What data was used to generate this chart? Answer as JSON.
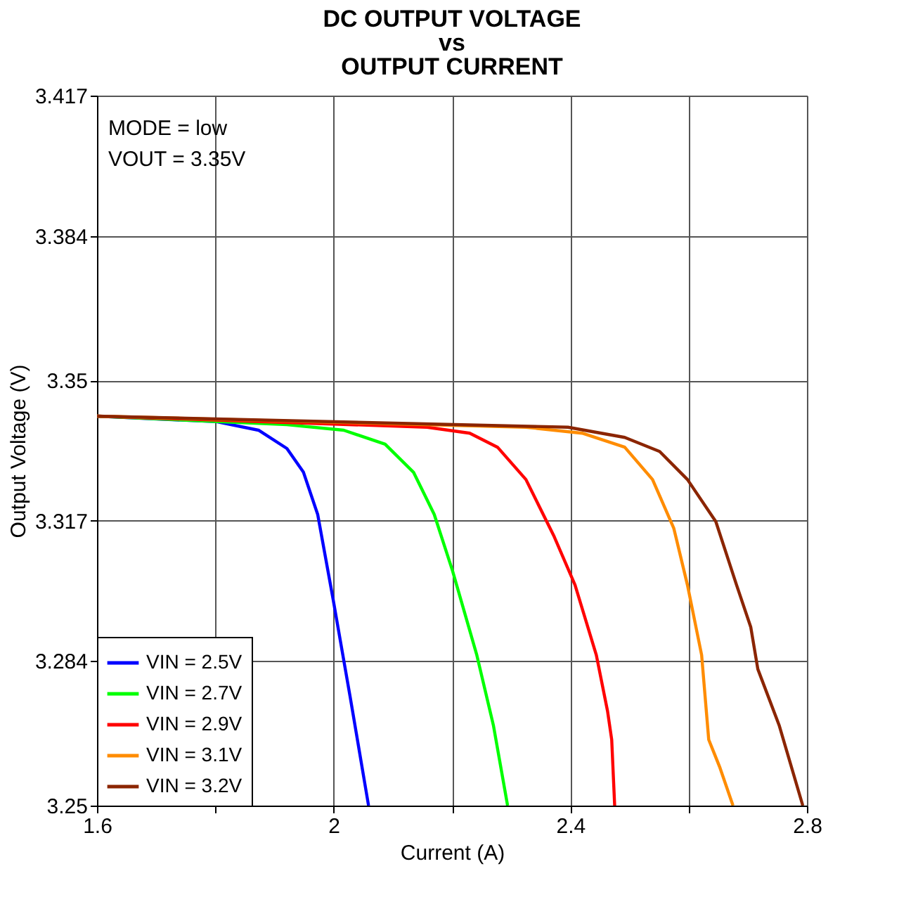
{
  "chart_data": {
    "type": "line",
    "title": "DC OUTPUT VOLTAGE\nvs\nOUTPUT CURRENT",
    "xlabel": "Current (A)",
    "ylabel": "Output Voltage (V)",
    "annotations": [
      "MODE = low",
      "VOUT = 3.35V"
    ],
    "xlim": [
      1.6,
      2.8
    ],
    "xticks": [
      1.6,
      {
        "value": 1.8,
        "label": null
      },
      2,
      {
        "value": 2.2,
        "label": null
      },
      2.4,
      {
        "value": 2.6,
        "label": null
      },
      2.8
    ],
    "ylim": [
      3.25,
      3.417
    ],
    "yticks": [
      3.25,
      3.284,
      3.317,
      3.35,
      3.384,
      3.417
    ],
    "grid": true,
    "legend": "bottom left",
    "line_style": "solid",
    "marker": "none",
    "series": [
      {
        "name": "VIN = 2.5V",
        "color": "#0000ff",
        "x": [
          1.6,
          1.802,
          1.873,
          1.921,
          1.949,
          1.973,
          1.999,
          2.028,
          2.059
        ],
        "values": [
          3.3416,
          3.3403,
          3.3383,
          3.334,
          3.3284,
          3.3185,
          3.2986,
          3.2755,
          3.25
        ]
      },
      {
        "name": "VIN = 2.7V",
        "color": "#00ff00",
        "x": [
          1.6,
          1.921,
          2.017,
          2.087,
          2.135,
          2.17,
          2.201,
          2.242,
          2.27,
          2.294
        ],
        "values": [
          3.3416,
          3.3396,
          3.3383,
          3.335,
          3.3284,
          3.3185,
          3.3052,
          3.2854,
          3.2689,
          3.25
        ]
      },
      {
        "name": "VIN = 2.9V",
        "color": "#ff0000",
        "x": [
          1.6,
          2.158,
          2.23,
          2.277,
          2.325,
          2.372,
          2.408,
          2.444,
          2.463,
          2.47,
          2.475
        ],
        "values": [
          3.3416,
          3.339,
          3.3376,
          3.3343,
          3.3267,
          3.3135,
          3.3019,
          3.2854,
          3.2722,
          3.2655,
          3.25
        ]
      },
      {
        "name": "VIN = 3.1V",
        "color": "#ff8c00",
        "x": [
          1.6,
          2.325,
          2.42,
          2.492,
          2.539,
          2.575,
          2.598,
          2.622,
          2.634,
          2.653,
          2.675
        ],
        "values": [
          3.3416,
          3.339,
          3.3376,
          3.3343,
          3.3267,
          3.3152,
          3.3019,
          3.2854,
          3.2655,
          3.2589,
          3.25
        ]
      },
      {
        "name": "VIN = 3.2V",
        "color": "#8b2500",
        "x": [
          1.6,
          2.396,
          2.492,
          2.551,
          2.598,
          2.646,
          2.681,
          2.705,
          2.717,
          2.753,
          2.793
        ],
        "values": [
          3.3416,
          3.339,
          3.3366,
          3.3333,
          3.3267,
          3.3168,
          3.3019,
          3.292,
          3.2821,
          3.2689,
          3.25
        ]
      }
    ]
  }
}
